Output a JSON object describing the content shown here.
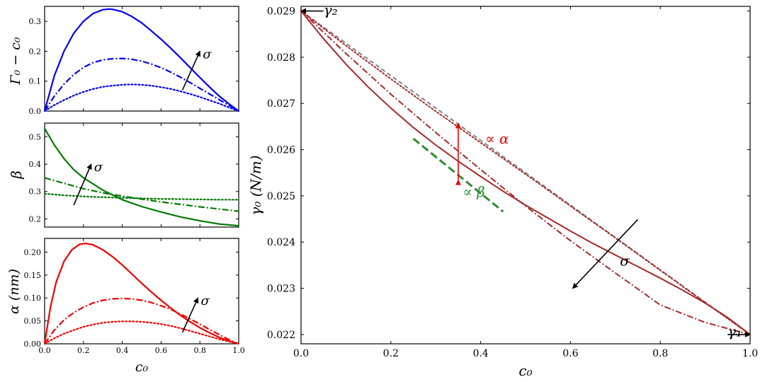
{
  "chart_data": [
    {
      "id": "p1",
      "type": "line",
      "ylabel": "Γ₀ − c₀",
      "xlabel": "",
      "xlim": [
        0,
        1
      ],
      "ylim": [
        0,
        0.35
      ],
      "xticks": [
        "0.0",
        "0.2",
        "0.4",
        "0.6",
        "0.8",
        "1.0"
      ],
      "show_xtick_labels": false,
      "yticks": [
        "0.0",
        "0.1",
        "0.2",
        "0.3"
      ],
      "color": "#0000ee",
      "series": [
        {
          "name": "solid",
          "style": "solid",
          "x": [
            0,
            0.05,
            0.1,
            0.15,
            0.2,
            0.25,
            0.3,
            0.33,
            0.35,
            0.4,
            0.45,
            0.5,
            0.55,
            0.6,
            0.65,
            0.7,
            0.75,
            0.8,
            0.85,
            0.9,
            0.95,
            1.0
          ],
          "y": [
            0,
            0.118,
            0.2,
            0.26,
            0.3,
            0.326,
            0.339,
            0.341,
            0.34,
            0.332,
            0.316,
            0.295,
            0.268,
            0.24,
            0.21,
            0.178,
            0.145,
            0.112,
            0.08,
            0.05,
            0.024,
            0
          ]
        },
        {
          "name": "dashdot",
          "style": "dashdot",
          "x": [
            0,
            0.05,
            0.1,
            0.15,
            0.2,
            0.25,
            0.3,
            0.35,
            0.4,
            0.45,
            0.5,
            0.55,
            0.6,
            0.65,
            0.7,
            0.75,
            0.8,
            0.85,
            0.9,
            0.95,
            1.0
          ],
          "y": [
            0,
            0.05,
            0.09,
            0.122,
            0.146,
            0.162,
            0.171,
            0.175,
            0.176,
            0.173,
            0.167,
            0.157,
            0.145,
            0.13,
            0.113,
            0.095,
            0.076,
            0.057,
            0.038,
            0.019,
            0
          ]
        },
        {
          "name": "dotted",
          "style": "dotted",
          "x": [
            0,
            0.05,
            0.1,
            0.15,
            0.2,
            0.25,
            0.3,
            0.35,
            0.4,
            0.45,
            0.5,
            0.55,
            0.6,
            0.65,
            0.7,
            0.75,
            0.8,
            0.85,
            0.9,
            0.95,
            1.0
          ],
          "y": [
            0,
            0.02,
            0.037,
            0.052,
            0.064,
            0.074,
            0.081,
            0.085,
            0.088,
            0.089,
            0.088,
            0.085,
            0.08,
            0.074,
            0.066,
            0.057,
            0.047,
            0.036,
            0.025,
            0.012,
            0
          ]
        }
      ],
      "arrow": {
        "from": [
          0.71,
          0.07
        ],
        "to": [
          0.8,
          0.2
        ],
        "label": "σ"
      }
    },
    {
      "id": "p2",
      "type": "line",
      "ylabel": "β",
      "xlabel": "",
      "xlim": [
        0,
        1
      ],
      "ylim": [
        0.17,
        0.55
      ],
      "xticks": [
        "0.0",
        "0.2",
        "0.4",
        "0.6",
        "0.8",
        "1.0"
      ],
      "show_xtick_labels": false,
      "yticks": [
        "0.2",
        "0.3",
        "0.4",
        "0.5"
      ],
      "color": "#007a00",
      "series": [
        {
          "name": "solid",
          "style": "solid",
          "x": [
            0,
            0.05,
            0.1,
            0.15,
            0.2,
            0.3,
            0.4,
            0.5,
            0.6,
            0.7,
            0.8,
            0.9,
            1.0
          ],
          "y": [
            0.53,
            0.47,
            0.42,
            0.38,
            0.35,
            0.305,
            0.27,
            0.245,
            0.225,
            0.207,
            0.193,
            0.181,
            0.175
          ]
        },
        {
          "name": "dashdot",
          "style": "dashdot",
          "x": [
            0,
            0.1,
            0.2,
            0.3,
            0.4,
            0.5,
            0.6,
            0.7,
            0.8,
            0.9,
            1.0
          ],
          "y": [
            0.35,
            0.33,
            0.31,
            0.295,
            0.283,
            0.272,
            0.262,
            0.253,
            0.244,
            0.236,
            0.228
          ]
        },
        {
          "name": "dotted",
          "style": "dotted",
          "x": [
            0,
            0.1,
            0.2,
            0.3,
            0.4,
            0.5,
            0.6,
            0.7,
            0.8,
            0.9,
            1.0
          ],
          "y": [
            0.292,
            0.286,
            0.282,
            0.279,
            0.277,
            0.275,
            0.273,
            0.272,
            0.271,
            0.27,
            0.27
          ]
        }
      ],
      "arrow": {
        "from": [
          0.15,
          0.25
        ],
        "to": [
          0.24,
          0.4
        ],
        "label": "σ"
      }
    },
    {
      "id": "p3",
      "type": "line",
      "ylabel": "α (nm)",
      "xlabel": "c₀",
      "xlim": [
        0,
        1
      ],
      "ylim": [
        0,
        0.23
      ],
      "xticks": [
        "0.0",
        "0.2",
        "0.4",
        "0.6",
        "0.8",
        "1.0"
      ],
      "show_xtick_labels": true,
      "yticks": [
        "0.00",
        "0.05",
        "0.10",
        "0.15",
        "0.20"
      ],
      "color": "#ee0000",
      "series": [
        {
          "name": "solid",
          "style": "solid",
          "x": [
            0,
            0.03,
            0.06,
            0.1,
            0.14,
            0.18,
            0.21,
            0.25,
            0.3,
            0.35,
            0.4,
            0.45,
            0.5,
            0.55,
            0.6,
            0.65,
            0.7,
            0.75,
            0.8,
            0.85,
            0.9,
            0.95,
            1.0
          ],
          "y": [
            0,
            0.08,
            0.135,
            0.18,
            0.205,
            0.217,
            0.219,
            0.216,
            0.205,
            0.19,
            0.172,
            0.152,
            0.132,
            0.113,
            0.095,
            0.078,
            0.062,
            0.048,
            0.035,
            0.024,
            0.014,
            0.006,
            0
          ]
        },
        {
          "name": "dashdot",
          "style": "dashdot",
          "x": [
            0,
            0.05,
            0.1,
            0.15,
            0.2,
            0.25,
            0.3,
            0.35,
            0.4,
            0.45,
            0.5,
            0.55,
            0.6,
            0.65,
            0.7,
            0.75,
            0.8,
            0.85,
            0.9,
            0.95,
            1.0
          ],
          "y": [
            0,
            0.03,
            0.052,
            0.068,
            0.08,
            0.089,
            0.095,
            0.098,
            0.099,
            0.098,
            0.095,
            0.09,
            0.083,
            0.075,
            0.065,
            0.054,
            0.043,
            0.031,
            0.02,
            0.009,
            0
          ]
        },
        {
          "name": "dotted",
          "style": "dotted",
          "x": [
            0,
            0.05,
            0.1,
            0.15,
            0.2,
            0.25,
            0.3,
            0.35,
            0.4,
            0.45,
            0.5,
            0.55,
            0.6,
            0.65,
            0.7,
            0.75,
            0.8,
            0.85,
            0.9,
            0.95,
            1.0
          ],
          "y": [
            0,
            0.012,
            0.022,
            0.03,
            0.037,
            0.042,
            0.046,
            0.048,
            0.049,
            0.049,
            0.048,
            0.046,
            0.043,
            0.039,
            0.034,
            0.028,
            0.022,
            0.016,
            0.01,
            0.005,
            0
          ]
        }
      ],
      "arrow": {
        "from": [
          0.71,
          0.025
        ],
        "to": [
          0.79,
          0.1
        ],
        "label": "σ"
      }
    },
    {
      "id": "main",
      "type": "line",
      "ylabel": "γ₀ (N/m)",
      "xlabel": "c₀",
      "xlim": [
        0,
        1
      ],
      "ylim": [
        0.0218,
        0.0291
      ],
      "xticks": [
        "0.0",
        "0.2",
        "0.4",
        "0.6",
        "0.8",
        "1.0"
      ],
      "show_xtick_labels": true,
      "yticks": [
        "0.022",
        "0.023",
        "0.024",
        "0.025",
        "0.026",
        "0.027",
        "0.028",
        "0.029"
      ],
      "series": [
        {
          "name": "ideal",
          "style": "dashed",
          "color": "#808080",
          "x": [
            0,
            1
          ],
          "y": [
            0.029,
            0.022
          ]
        },
        {
          "name": "dotted",
          "style": "dotted",
          "color": "#a52a2a",
          "x": [
            0,
            0.1,
            0.2,
            0.3,
            0.4,
            0.5,
            0.6,
            0.7,
            0.8,
            0.9,
            1.0
          ],
          "y": [
            0.029,
            0.02825,
            0.02753,
            0.02683,
            0.02615,
            0.02547,
            0.02478,
            0.02409,
            0.02339,
            0.02269,
            0.022
          ]
        },
        {
          "name": "dashdot",
          "style": "dashdot",
          "color": "#a52a2a",
          "x": [
            0,
            0.1,
            0.2,
            0.3,
            0.4,
            0.5,
            0.6,
            0.7,
            0.8,
            0.9,
            1.0
          ],
          "y": [
            0.029,
            0.02808,
            0.0272,
            0.02637,
            0.02557,
            0.02478,
            0.02403,
            0.02333,
            0.02264,
            0.02226,
            0.022
          ]
        },
        {
          "name": "solid",
          "style": "solid",
          "color": "#a52a2a",
          "x": [
            0,
            0.05,
            0.1,
            0.15,
            0.2,
            0.25,
            0.3,
            0.35,
            0.4,
            0.45,
            0.5,
            0.55,
            0.6,
            0.65,
            0.7,
            0.75,
            0.8,
            0.85,
            0.9,
            0.95,
            1.0
          ],
          "y": [
            0.029,
            0.0284,
            0.02785,
            0.02735,
            0.0269,
            0.02648,
            0.0261,
            0.02575,
            0.02542,
            0.0251,
            0.0248,
            0.02452,
            0.02424,
            0.02397,
            0.02372,
            0.02347,
            0.02322,
            0.02296,
            0.02268,
            0.02237,
            0.022
          ]
        },
        {
          "name": "tangent",
          "style": "longdash",
          "color": "#2e8b2e",
          "x": [
            0.25,
            0.45
          ],
          "y": [
            0.02624,
            0.02466
          ]
        }
      ],
      "annotations": [
        {
          "text": "γ₂",
          "at": [
            0.05,
            0.02892
          ],
          "color": "#000000"
        },
        {
          "text": "γ₁",
          "at": [
            0.95,
            0.02196
          ],
          "color": "#000000"
        },
        {
          "text": "∝ α",
          "at": [
            0.41,
            0.02613
          ],
          "color": "#ee0000"
        },
        {
          "text": "∝ β",
          "at": [
            0.36,
            0.02498
          ],
          "color": "#2e8b2e"
        },
        {
          "text": "σ",
          "at": [
            0.71,
            0.02349
          ],
          "color": "#000000"
        }
      ],
      "alpha_bracket": {
        "x": 0.35,
        "y_top": 0.02657,
        "y_bottom": 0.02534
      },
      "sigma_arrow": {
        "from": [
          0.75,
          0.02449
        ],
        "to": [
          0.605,
          0.023
        ]
      },
      "gamma2_arrow": {
        "from": [
          0.05,
          0.029
        ],
        "to": [
          0.0,
          0.029
        ]
      },
      "gamma1_arrow": {
        "from": [
          0.95,
          0.022
        ],
        "to": [
          1.0,
          0.022
        ]
      }
    }
  ]
}
